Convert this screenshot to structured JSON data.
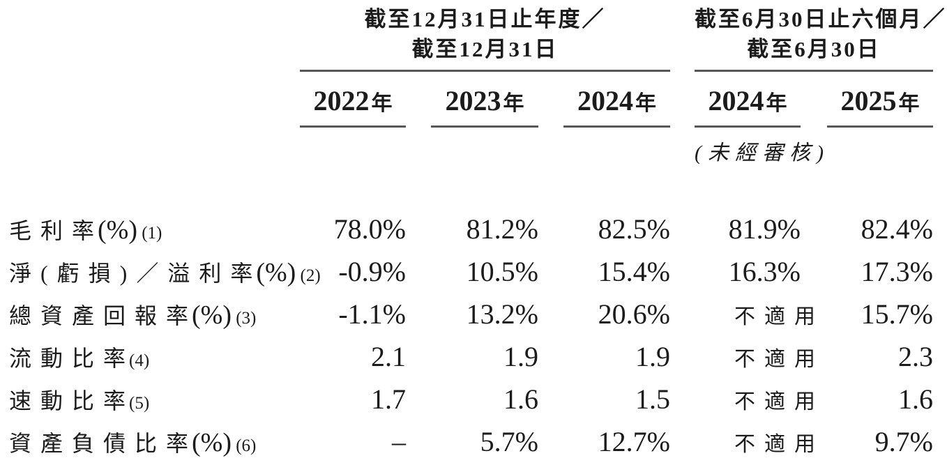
{
  "table": {
    "column_groups": [
      {
        "title_line1": "截至12月31日止年度／",
        "title_line2": "截至12月31日",
        "columns": [
          {
            "year": "2022",
            "suffix": "年"
          },
          {
            "year": "2023",
            "suffix": "年"
          },
          {
            "year": "2024",
            "suffix": "年"
          }
        ]
      },
      {
        "title_line1": "截至6月30日止六個月／",
        "title_line2": "截至6月30日",
        "columns": [
          {
            "year": "2024",
            "suffix": "年"
          },
          {
            "year": "2025",
            "suffix": "年"
          }
        ],
        "note": "(未經審核)"
      }
    ],
    "rows": [
      {
        "label": "毛利率",
        "unit": "(%)",
        "note": " (1)",
        "values": [
          "78.0%",
          "81.2%",
          "82.5%",
          "81.9%",
          "82.4%"
        ]
      },
      {
        "label": "淨(虧損)／溢利率",
        "unit": "(%)",
        "note": " (2)",
        "values": [
          "-0.9%",
          "10.5%",
          "15.4%",
          "16.3%",
          "17.3%"
        ]
      },
      {
        "label": "總資產回報率",
        "unit": "(%)",
        "note": " (3)",
        "values": [
          "-1.1%",
          "13.2%",
          "20.6%",
          "不適用",
          "15.7%"
        ]
      },
      {
        "label": "流動比率",
        "unit": "",
        "note": "(4)",
        "values": [
          "2.1",
          "1.9",
          "1.9",
          "不適用",
          "2.3"
        ]
      },
      {
        "label": "速動比率",
        "unit": "",
        "note": "(5)",
        "values": [
          "1.7",
          "1.6",
          "1.5",
          "不適用",
          "1.6"
        ]
      },
      {
        "label": "資產負債比率",
        "unit": "(%)",
        "note": " (6)",
        "values": [
          "–",
          "5.7%",
          "12.7%",
          "不適用",
          "9.7%"
        ]
      }
    ],
    "colors": {
      "text": "#1b1b1b",
      "rule": "#57575a",
      "background": "#ffffff"
    }
  }
}
